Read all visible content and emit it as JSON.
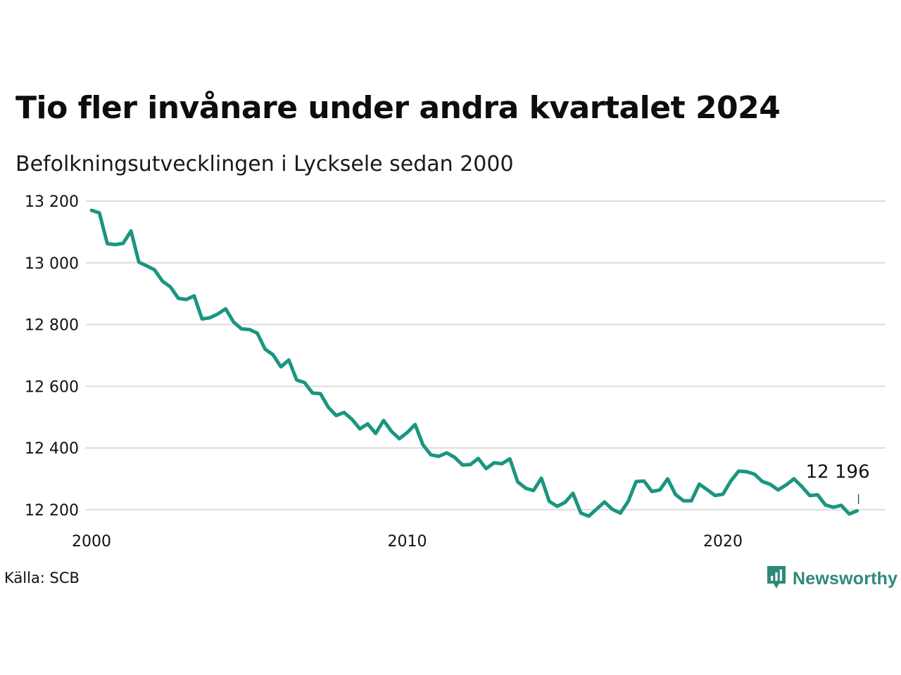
{
  "chart_data": {
    "type": "line",
    "title": "Tio fler invånare under andra kvartalet 2024",
    "subtitle": "Befolkningsutvecklingen i Lycksele sedan 2000",
    "ylim": [
      12120,
      13225
    ],
    "yticks": [
      12200,
      12400,
      12600,
      12800,
      13000,
      13200
    ],
    "ytick_labels": [
      "12 200",
      "12 400",
      "12 600",
      "12 800",
      "13 000",
      "13 200"
    ],
    "xlim": [
      2000,
      2025.15
    ],
    "xticks": [
      2000,
      2010,
      2020
    ],
    "xtick_labels": [
      "2000",
      "2010",
      "2020"
    ],
    "grid": true,
    "line_color": "#1b9580",
    "end_label": "12 196",
    "series": [
      {
        "x": [
          2000.0,
          2000.25,
          2000.5,
          2000.75,
          2001.0,
          2001.25,
          2001.5,
          2001.75,
          2002.0,
          2002.25,
          2002.5,
          2002.75,
          2003.0,
          2003.25,
          2003.5,
          2003.75,
          2004.0,
          2004.25,
          2004.5,
          2004.75,
          2005.0,
          2005.25,
          2005.5,
          2005.75,
          2006.0,
          2006.25,
          2006.5,
          2006.75,
          2007.0,
          2007.25,
          2007.5,
          2007.75,
          2008.0,
          2008.25,
          2008.5,
          2008.75,
          2009.0,
          2009.25,
          2009.5,
          2009.75,
          2010.0,
          2010.25,
          2010.5,
          2010.75,
          2011.0,
          2011.25,
          2011.5,
          2011.75,
          2012.0,
          2012.25,
          2012.5,
          2012.75,
          2013.0,
          2013.25,
          2013.5,
          2013.75,
          2014.0,
          2014.25,
          2014.5,
          2014.75,
          2015.0,
          2015.25,
          2015.5,
          2015.75,
          2016.0,
          2016.25,
          2016.5,
          2016.75,
          2017.0,
          2017.25,
          2017.5,
          2017.75,
          2018.0,
          2018.25,
          2018.5,
          2018.75,
          2019.0,
          2019.25,
          2019.5,
          2019.75,
          2020.0,
          2020.25,
          2020.5,
          2020.75,
          2021.0,
          2021.25,
          2021.5,
          2021.75,
          2022.0,
          2022.25,
          2022.5,
          2022.75,
          2023.0,
          2023.25,
          2023.5,
          2023.75,
          2024.0,
          2024.25
        ],
        "values": [
          13170,
          13162,
          13062,
          13059,
          13063,
          13103,
          13002,
          12990,
          12977,
          12940,
          12922,
          12885,
          12881,
          12893,
          12818,
          12822,
          12834,
          12851,
          12808,
          12786,
          12784,
          12772,
          12720,
          12702,
          12663,
          12685,
          12620,
          12612,
          12578,
          12576,
          12532,
          12505,
          12515,
          12493,
          12462,
          12478,
          12447,
          12489,
          12454,
          12430,
          12450,
          12476,
          12410,
          12378,
          12373,
          12384,
          12370,
          12345,
          12346,
          12366,
          12333,
          12352,
          12349,
          12365,
          12290,
          12270,
          12262,
          12302,
          12227,
          12211,
          12224,
          12253,
          12189,
          12179,
          12202,
          12225,
          12201,
          12189,
          12227,
          12291,
          12293,
          12259,
          12264,
          12300,
          12249,
          12229,
          12229,
          12283,
          12265,
          12246,
          12250,
          12293,
          12325,
          12323,
          12315,
          12291,
          12282,
          12264,
          12280,
          12300,
          12275,
          12246,
          12248,
          12215,
          12208,
          12214,
          12186,
          12196
        ]
      }
    ]
  },
  "footer": {
    "source": "Källa: SCB",
    "brand": "Newsworthy"
  }
}
